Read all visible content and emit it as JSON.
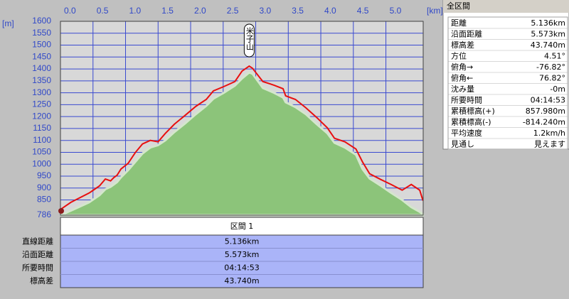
{
  "chart_data": {
    "type": "area",
    "x": [
      0,
      0.16,
      0.44,
      0.6,
      0.69,
      0.77,
      0.82,
      0.87,
      0.93,
      1.04,
      1.15,
      1.26,
      1.38,
      1.5,
      1.61,
      1.75,
      1.91,
      2.08,
      2.24,
      2.35,
      2.51,
      2.68,
      2.79,
      2.9,
      2.95,
      3.11,
      3.28,
      3.42,
      3.46,
      3.61,
      3.77,
      3.93,
      4.1,
      4.21,
      4.37,
      4.54,
      4.64,
      4.75,
      4.92,
      5.08,
      5.25,
      5.39,
      5.52,
      5.57
    ],
    "series": [
      {
        "color": "#e81010",
        "values": [
          810,
          840,
          879,
          909,
          938,
          930,
          944,
          954,
          980,
          1004,
          1049,
          1085,
          1100,
          1094,
          1129,
          1168,
          1204,
          1243,
          1272,
          1308,
          1326,
          1347,
          1391,
          1412,
          1403,
          1347,
          1332,
          1317,
          1287,
          1272,
          1237,
          1198,
          1153,
          1109,
          1094,
          1064,
          1010,
          960,
          936,
          915,
          891,
          915,
          891,
          847
        ]
      },
      {
        "color": "#8cc47a",
        "values": [
          786,
          805,
          840,
          870,
          895,
          905,
          915,
          925,
          945,
          975,
          1010,
          1045,
          1070,
          1080,
          1100,
          1135,
          1170,
          1210,
          1245,
          1275,
          1300,
          1330,
          1360,
          1385,
          1380,
          1320,
          1300,
          1280,
          1260,
          1240,
          1210,
          1170,
          1130,
          1090,
          1070,
          1040,
          980,
          940,
          910,
          880,
          850,
          820,
          800,
          790
        ]
      }
    ],
    "xlim": [
      0,
      5.573
    ],
    "xticks": [
      {
        "value": 0,
        "label": "0.0"
      },
      0.5,
      {
        "value": 1,
        "label": "1.0"
      },
      1.5,
      {
        "value": 2,
        "label": "2.0"
      },
      2.5,
      {
        "value": 3,
        "label": "3.0"
      },
      3.5,
      {
        "value": 4,
        "label": "4.0"
      },
      4.5,
      {
        "value": 5,
        "label": "5.0"
      }
    ],
    "ylim": [
      786,
      1600
    ],
    "yticks": [
      786,
      850,
      900,
      950,
      1000,
      1050,
      1100,
      1150,
      1200,
      1250,
      1300,
      1350,
      1400,
      1450,
      1500,
      1550,
      1600
    ],
    "grid": true,
    "x_unit": "[km]",
    "y_unit": "[m]",
    "annotation": {
      "text": "米子山",
      "x": 2.9
    }
  },
  "summary": {
    "title": "全区間",
    "rows": [
      [
        "距離",
        "5.136km"
      ],
      [
        "沿面距離",
        "5.573km"
      ],
      [
        "標高差",
        "43.740m"
      ],
      [
        "方位",
        "4.51°"
      ],
      [
        "俯角→",
        "-76.82°"
      ],
      [
        "俯角←",
        "76.82°"
      ],
      [
        "沈み量",
        "-0m"
      ],
      [
        "所要時間",
        "04:14:53"
      ],
      [
        "累積標高(+)",
        "857.980m"
      ],
      [
        "累積標高(-)",
        "-814.240m"
      ],
      [
        "平均速度",
        "1.2km/h"
      ],
      [
        "見通し",
        "見えます"
      ]
    ]
  },
  "section": {
    "title": "区間 1",
    "rows": [
      [
        "直線距離",
        "5.136km"
      ],
      [
        "沿面距離",
        "5.573km"
      ],
      [
        "所要時間",
        "04:14:53"
      ],
      [
        "標高差",
        "43.740m"
      ]
    ]
  }
}
